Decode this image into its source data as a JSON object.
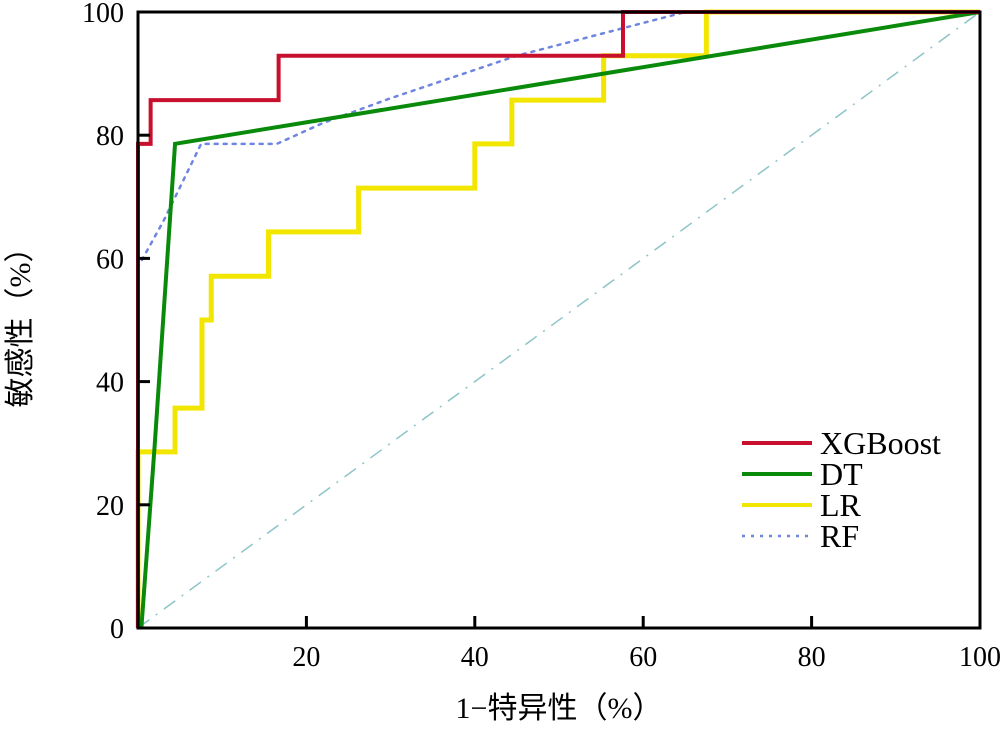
{
  "chart_data": {
    "type": "line",
    "xlabel": "1−特异性（%）",
    "ylabel": "敏感性（%）",
    "xlim": [
      0,
      100
    ],
    "ylim": [
      0,
      100
    ],
    "xticks": [
      "20",
      "40",
      "60",
      "80",
      "100"
    ],
    "yticks": [
      "0",
      "20",
      "40",
      "60",
      "80",
      "100"
    ],
    "grid": false,
    "legend_position": "bottom-right",
    "series": [
      {
        "name": "XGBoost",
        "color": "#c8102e",
        "style": "solid",
        "x": [
          0,
          0,
          1.5,
          1.5,
          16.7,
          16.7,
          57.6,
          57.6,
          100
        ],
        "y": [
          0,
          78.6,
          78.6,
          85.7,
          85.7,
          92.9,
          92.9,
          100,
          100
        ]
      },
      {
        "name": "DT",
        "color": "#0a8a0a",
        "style": "solid",
        "x": [
          0.4,
          2,
          4.4,
          100
        ],
        "y": [
          0,
          30,
          78.6,
          100
        ]
      },
      {
        "name": "LR",
        "color": "#f2e600",
        "style": "solid",
        "x": [
          0,
          0,
          4.4,
          4.4,
          7.6,
          7.6,
          8.7,
          8.7,
          15.5,
          15.5,
          26.2,
          26.2,
          40,
          40,
          44.4,
          44.4,
          55.3,
          55.3,
          67.5,
          67.5,
          100
        ],
        "y": [
          0,
          28.6,
          28.6,
          35.7,
          35.7,
          50,
          50,
          57.1,
          57.1,
          64.3,
          64.3,
          71.4,
          71.4,
          78.6,
          78.6,
          85.7,
          85.7,
          92.9,
          92.9,
          100,
          100
        ]
      },
      {
        "name": "RF",
        "color": "#6f86e0",
        "style": "dotted",
        "x": [
          0,
          0,
          3,
          7.5,
          16.5,
          22,
          30,
          45,
          65,
          100
        ],
        "y": [
          0,
          58.6,
          66,
          78.6,
          78.6,
          82,
          86,
          92.9,
          100,
          100
        ]
      }
    ],
    "reference_line": {
      "color": "#8cc4c8",
      "style": "dash-dot",
      "x": [
        0,
        100
      ],
      "y": [
        0,
        100
      ]
    }
  }
}
